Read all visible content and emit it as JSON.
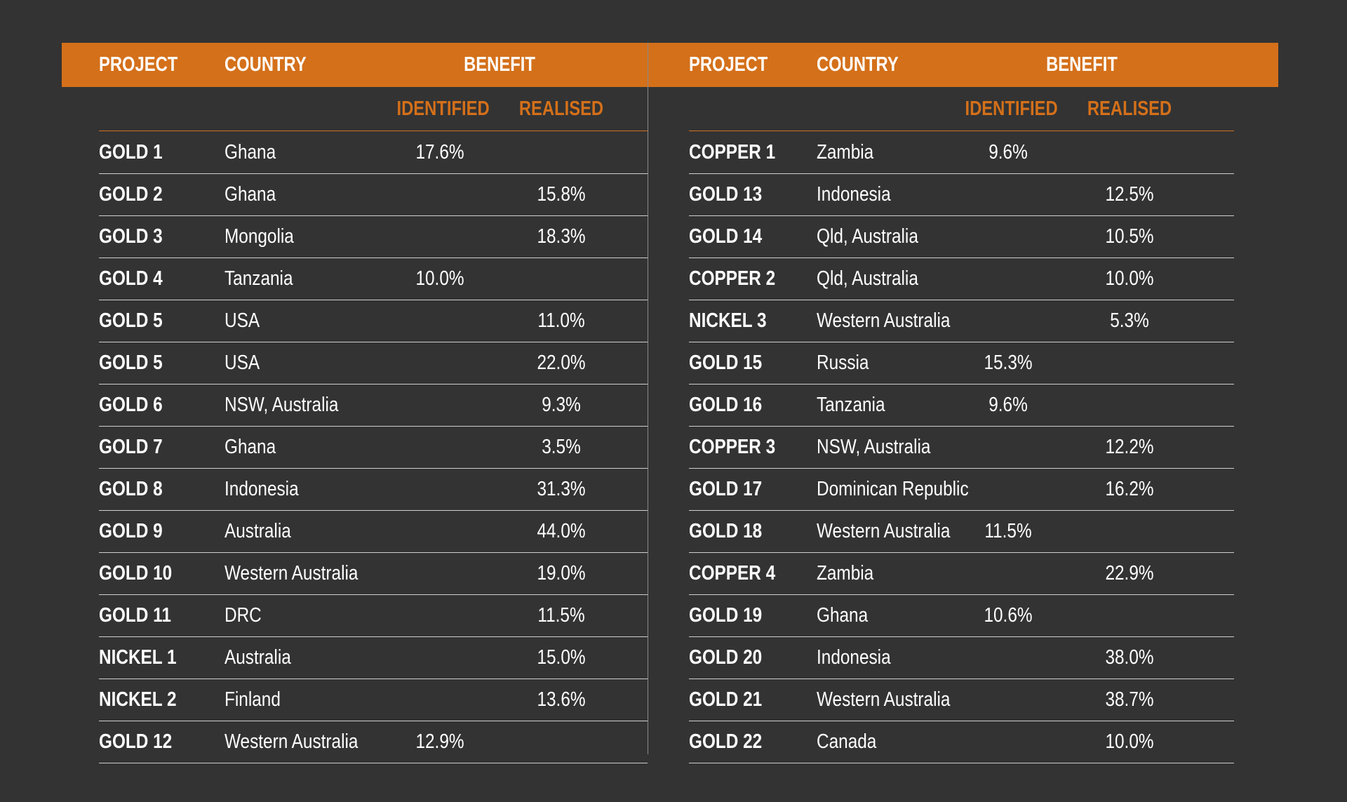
{
  "colors": {
    "background": "#333333",
    "accent": "#D4701A",
    "text": "#ffffff",
    "rule": "#cfcfcf"
  },
  "headers": {
    "project": "PROJECT",
    "country": "COUNTRY",
    "benefit": "BENEFIT",
    "identified": "IDENTIFIED",
    "realised": "REALISED"
  },
  "left_rows": [
    {
      "project": "GOLD 1",
      "country": "Ghana",
      "identified": "17.6%",
      "realised": ""
    },
    {
      "project": "GOLD 2",
      "country": "Ghana",
      "identified": "",
      "realised": "15.8%"
    },
    {
      "project": "GOLD 3",
      "country": "Mongolia",
      "identified": "",
      "realised": "18.3%"
    },
    {
      "project": "GOLD 4",
      "country": "Tanzania",
      "identified": "10.0%",
      "realised": ""
    },
    {
      "project": "GOLD 5",
      "country": "USA",
      "identified": "",
      "realised": "11.0%"
    },
    {
      "project": "GOLD 5",
      "country": "USA",
      "identified": "",
      "realised": "22.0%"
    },
    {
      "project": "GOLD 6",
      "country": "NSW, Australia",
      "identified": "",
      "realised": "9.3%"
    },
    {
      "project": "GOLD 7",
      "country": "Ghana",
      "identified": "",
      "realised": "3.5%"
    },
    {
      "project": "GOLD 8",
      "country": "Indonesia",
      "identified": "",
      "realised": "31.3%"
    },
    {
      "project": "GOLD 9",
      "country": "Australia",
      "identified": "",
      "realised": "44.0%"
    },
    {
      "project": "GOLD 10",
      "country": "Western Australia",
      "identified": "",
      "realised": "19.0%"
    },
    {
      "project": "GOLD 11",
      "country": "DRC",
      "identified": "",
      "realised": "11.5%"
    },
    {
      "project": "NICKEL 1",
      "country": "Australia",
      "identified": "",
      "realised": "15.0%"
    },
    {
      "project": "NICKEL 2",
      "country": "Finland",
      "identified": "",
      "realised": "13.6%"
    },
    {
      "project": "GOLD 12",
      "country": "Western Australia",
      "identified": "12.9%",
      "realised": ""
    }
  ],
  "right_rows": [
    {
      "project": "COPPER 1",
      "country": "Zambia",
      "identified": "9.6%",
      "realised": ""
    },
    {
      "project": "GOLD 13",
      "country": "Indonesia",
      "identified": "",
      "realised": "12.5%"
    },
    {
      "project": "GOLD 14",
      "country": "Qld, Australia",
      "identified": "",
      "realised": "10.5%"
    },
    {
      "project": "COPPER 2",
      "country": "Qld, Australia",
      "identified": "",
      "realised": "10.0%"
    },
    {
      "project": "NICKEL 3",
      "country": "Western Australia",
      "identified": "",
      "realised": "5.3%"
    },
    {
      "project": "GOLD 15",
      "country": "Russia",
      "identified": "15.3%",
      "realised": ""
    },
    {
      "project": "GOLD 16",
      "country": "Tanzania",
      "identified": "9.6%",
      "realised": ""
    },
    {
      "project": "COPPER 3",
      "country": "NSW, Australia",
      "identified": "",
      "realised": "12.2%"
    },
    {
      "project": "GOLD 17",
      "country": "Dominican Republic",
      "identified": "",
      "realised": "16.2%"
    },
    {
      "project": "GOLD 18",
      "country": "Western Australia",
      "identified": "11.5%",
      "realised": ""
    },
    {
      "project": "COPPER 4",
      "country": "Zambia",
      "identified": "",
      "realised": "22.9%"
    },
    {
      "project": "GOLD 19",
      "country": "Ghana",
      "identified": "10.6%",
      "realised": ""
    },
    {
      "project": "GOLD 20",
      "country": "Indonesia",
      "identified": "",
      "realised": "38.0%"
    },
    {
      "project": "GOLD 21",
      "country": "Western Australia",
      "identified": "",
      "realised": "38.7%"
    },
    {
      "project": "GOLD 22",
      "country": "Canada",
      "identified": "",
      "realised": "10.0%"
    }
  ]
}
